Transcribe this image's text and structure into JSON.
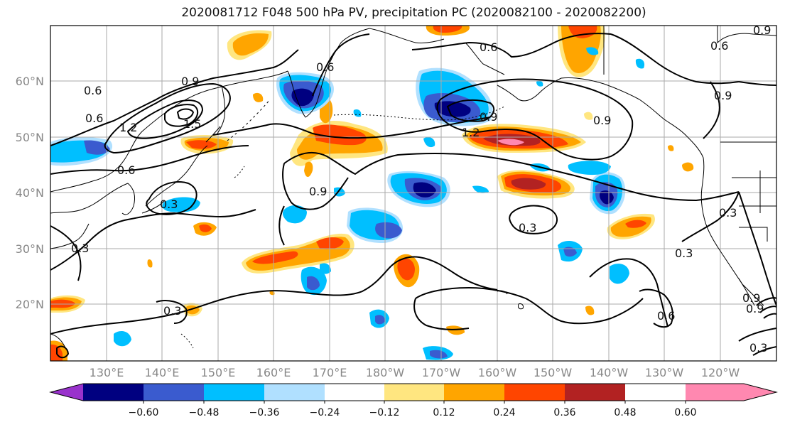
{
  "title": "2020081712 F048 500 hPa PV, precipitation PC (2020082100 - 2020082200)",
  "lat_labels": [
    "60°N",
    "50°N",
    "40°N",
    "30°N",
    "20°N"
  ],
  "lon_labels": [
    "130°E",
    "140°E",
    "150°E",
    "160°E",
    "170°E",
    "180°W",
    "170°W",
    "160°W",
    "150°W",
    "140°W",
    "130°W",
    "120°W"
  ],
  "colorbar": {
    "ticks": [
      "−0.60",
      "−0.48",
      "−0.36",
      "−0.24",
      "−0.12",
      "0.12",
      "0.24",
      "0.36",
      "0.48",
      "0.60"
    ],
    "colors": [
      "#9932cc",
      "#000080",
      "#3a5bcf",
      "#00bfff",
      "#b0e0ff",
      "#ffffff",
      "#ffe680",
      "#ffa500",
      "#ff4500",
      "#b22222",
      "#ff88b0"
    ]
  },
  "contour_labels": [
    "0.6",
    "0.9",
    "1.2",
    "1.5",
    "0.6",
    "0.6",
    "0.3",
    "0.3",
    "0.3",
    "0.9",
    "0.6",
    "0.9",
    "1.2",
    "0.9",
    "0.6",
    "0.9",
    "0.3",
    "0.3",
    "0.3",
    "0.6",
    "0.9",
    "0.3",
    "0.9",
    "0.6",
    "0.9"
  ]
}
